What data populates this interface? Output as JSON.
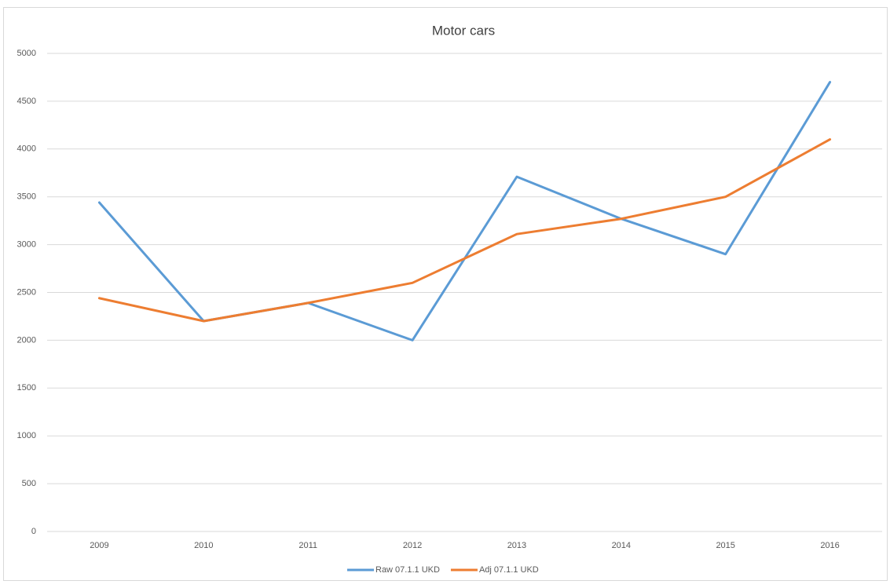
{
  "chart_data": {
    "type": "line",
    "title": "Motor cars",
    "categories": [
      "2009",
      "2010",
      "2011",
      "2012",
      "2013",
      "2014",
      "2015",
      "2016"
    ],
    "series": [
      {
        "name": "Raw 07.1.1 UKD",
        "color": "#5b9bd5",
        "values": [
          3440,
          2200,
          2390,
          2000,
          3710,
          3270,
          2900,
          4700
        ]
      },
      {
        "name": "Adj 07.1.1 UKD",
        "color": "#ed7d31",
        "values": [
          2440,
          2200,
          2390,
          2600,
          3110,
          3270,
          3500,
          4100
        ]
      }
    ],
    "ylim": [
      0,
      5000
    ],
    "yticks": [
      0,
      500,
      1000,
      1500,
      2000,
      2500,
      3000,
      3500,
      4000,
      4500,
      5000
    ],
    "grid": true,
    "legend": "bottom"
  }
}
